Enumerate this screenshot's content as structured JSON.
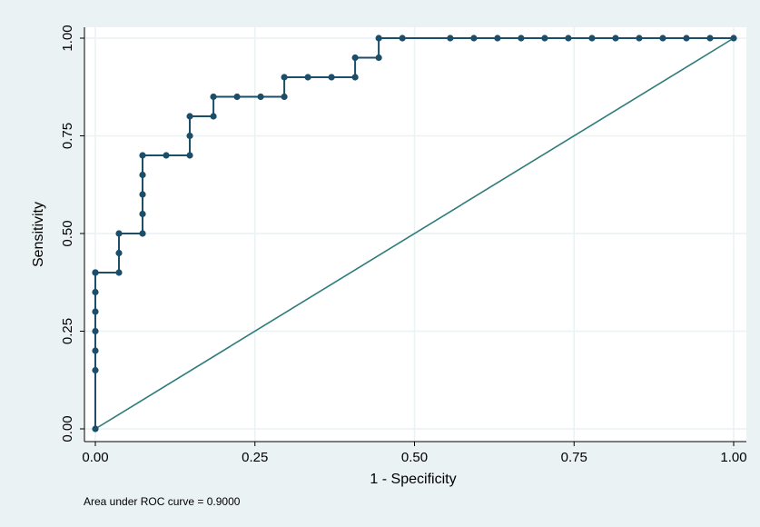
{
  "chart_data": {
    "type": "line",
    "xlabel": "1 - Specificity",
    "ylabel": "Sensitivity",
    "xlim": [
      0,
      1
    ],
    "ylim": [
      0,
      1
    ],
    "grid": true,
    "x_ticks": [
      0,
      0.25,
      0.5,
      0.75,
      1
    ],
    "y_ticks": [
      0,
      0.25,
      0.5,
      0.75,
      1
    ],
    "x_tick_labels": [
      "0.00",
      "0.25",
      "0.50",
      "0.75",
      "1.00"
    ],
    "y_tick_labels": [
      "0.00",
      "0.25",
      "0.50",
      "0.75",
      "1.00"
    ],
    "note": "Area under ROC curve = 0.9000",
    "colors": {
      "background": "#eaf2f3",
      "plot_area": "#ffffff",
      "grid": "#eaf2f3",
      "curve": "#1c4e6a",
      "reference": "#2e7b7b"
    },
    "series": [
      {
        "type": "step-line-with-markers",
        "x": [
          0,
          0,
          0,
          0,
          0,
          0,
          0,
          0,
          0.037,
          0.037,
          0.037,
          0.074,
          0.074,
          0.074,
          0.074,
          0.074,
          0.111,
          0.148,
          0.148,
          0.148,
          0.185,
          0.185,
          0.222,
          0.259,
          0.296,
          0.296,
          0.333,
          0.37,
          0.407,
          0.407,
          0.444,
          0.444,
          0.481,
          0.556,
          0.593,
          0.63,
          0.667,
          0.704,
          0.741,
          0.778,
          0.815,
          0.852,
          0.889,
          0.926,
          0.963,
          1.0
        ],
        "y": [
          0,
          0.15,
          0.2,
          0.25,
          0.3,
          0.35,
          0.4,
          0.4,
          0.4,
          0.45,
          0.5,
          0.5,
          0.55,
          0.6,
          0.65,
          0.7,
          0.7,
          0.7,
          0.75,
          0.8,
          0.8,
          0.85,
          0.85,
          0.85,
          0.85,
          0.9,
          0.9,
          0.9,
          0.9,
          0.95,
          0.95,
          1.0,
          1.0,
          1.0,
          1.0,
          1.0,
          1.0,
          1.0,
          1.0,
          1.0,
          1.0,
          1.0,
          1.0,
          1.0,
          1.0,
          1.0
        ]
      },
      {
        "type": "reference-line",
        "x": [
          0,
          1
        ],
        "y": [
          0,
          1
        ]
      }
    ]
  }
}
